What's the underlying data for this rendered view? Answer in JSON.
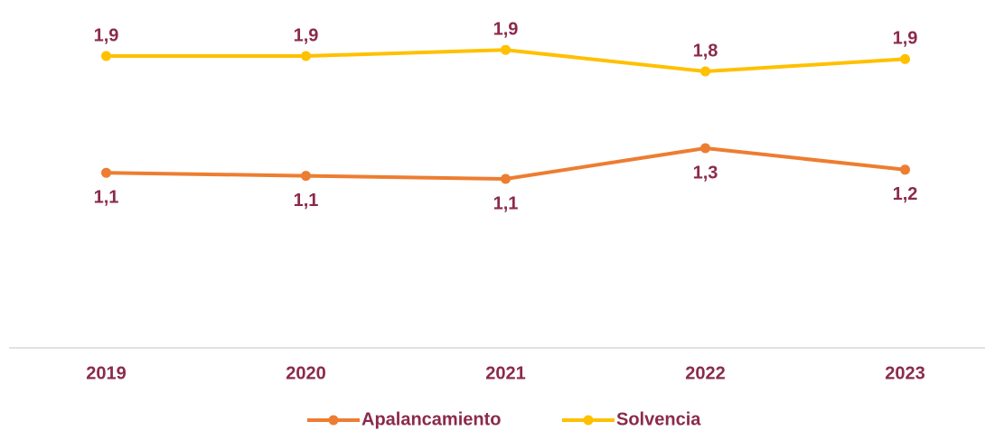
{
  "chart_data": {
    "type": "line",
    "categories": [
      "2019",
      "2020",
      "2021",
      "2022",
      "2023"
    ],
    "series": [
      {
        "name": "Apalancamiento",
        "color": "#ed7d31",
        "values": [
          1.14,
          1.12,
          1.1,
          1.3,
          1.16
        ],
        "value_labels": [
          "1,1",
          "1,1",
          "1,1",
          "1,3",
          "1,2"
        ]
      },
      {
        "name": "Solvencia",
        "color": "#ffc000",
        "values": [
          1.9,
          1.9,
          1.94,
          1.8,
          1.88
        ],
        "value_labels": [
          "1,9",
          "1,9",
          "1,9",
          "1,8",
          "1,9"
        ]
      }
    ],
    "ylim": [
      0,
      2.2
    ],
    "legend": "bottom",
    "label_color": "#8b2a4b"
  }
}
